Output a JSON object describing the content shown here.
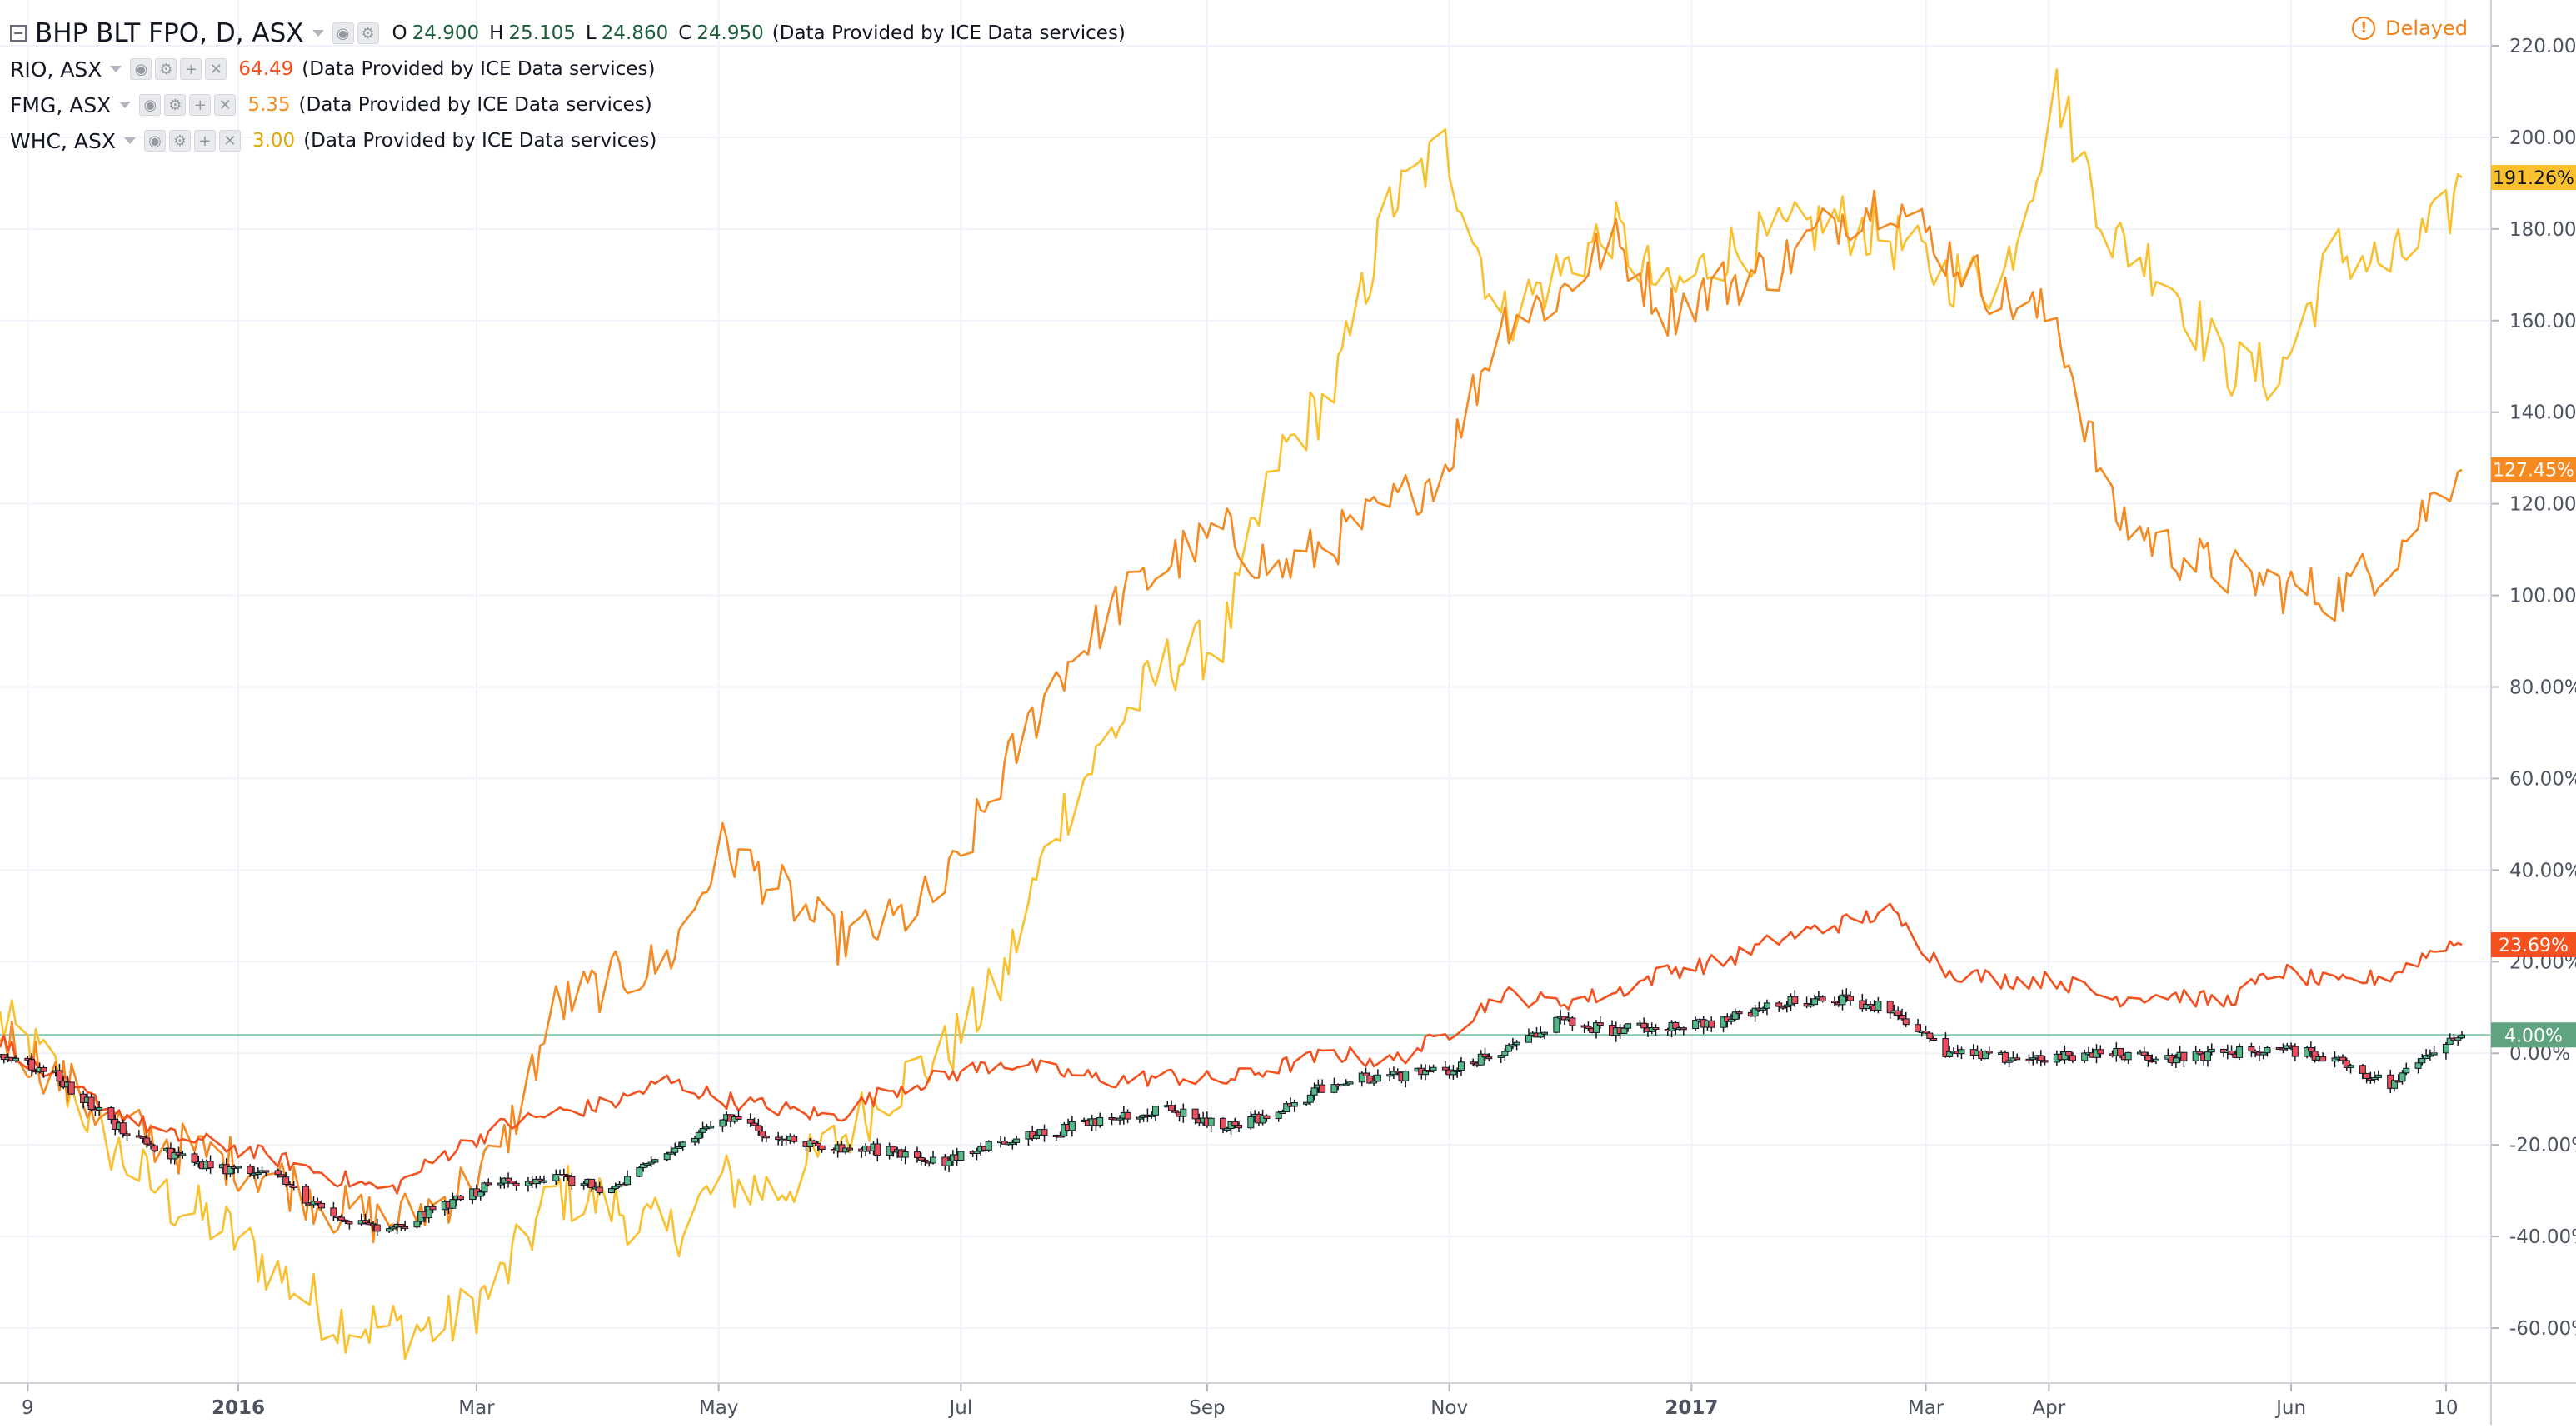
{
  "legend": {
    "main": {
      "symbol": "BHP BLT FPO, D, ASX",
      "o_label": "O",
      "o_value": "24.900",
      "h_label": "H",
      "h_value": "25.105",
      "l_label": "L",
      "l_value": "24.860",
      "c_label": "C",
      "c_value": "24.950",
      "note": "(Data Provided by ICE Data services)"
    },
    "compare": [
      {
        "symbol": "RIO, ASX",
        "value": "64.49",
        "note": "(Data Provided by ICE Data services)",
        "color": "#f4511e"
      },
      {
        "symbol": "FMG, ASX",
        "value": "5.35",
        "note": "(Data Provided by ICE Data services)",
        "color": "#f6891f"
      },
      {
        "symbol": "WHC, ASX",
        "value": "3.00",
        "note": "(Data Provided by ICE Data services)",
        "color": "#fbc02d"
      }
    ]
  },
  "status": {
    "delayed_label": "Delayed",
    "icon": "alert-circle-icon"
  },
  "colors": {
    "background": "#ffffff",
    "grid": "#f0f3fa",
    "axis_text": "#4c525e",
    "candle_up": "#53b987",
    "candle_down": "#eb4d5c",
    "candle_outline": "#131722",
    "rio": "#f4511e",
    "fmg": "#f6891f",
    "whc": "#fbc02d",
    "zero_line": "#7fc8a9",
    "bhp_badge": "#5fa47f"
  },
  "chart_data": {
    "type": "line",
    "subtype": "percent-comparison",
    "title": "",
    "xlabel": "",
    "ylabel": "",
    "x_range": [
      "2015-11-02",
      "2017-07-14"
    ],
    "ylim": [
      -72,
      230
    ],
    "y_ticks": [
      -60,
      -40,
      -20,
      0,
      20,
      40,
      60,
      80,
      100,
      120,
      140,
      160,
      180,
      200,
      220
    ],
    "y_tick_labels": [
      "-60.00%",
      "-40.00%",
      "-20.00%",
      "0.00%",
      "20.00%",
      "40.00%",
      "60.00%",
      "80.00%",
      "100.00%",
      "120.00%",
      "140.00%",
      "160.00%",
      "180.00%",
      "200.00%",
      "220.00%"
    ],
    "x_ticks": [
      {
        "date": "2015-11-09",
        "label": "9"
      },
      {
        "date": "2016-01-01",
        "label": "2016"
      },
      {
        "date": "2016-03-01",
        "label": "Mar"
      },
      {
        "date": "2016-05-01",
        "label": "May"
      },
      {
        "date": "2016-07-01",
        "label": "Jul"
      },
      {
        "date": "2016-09-01",
        "label": "Sep"
      },
      {
        "date": "2016-11-01",
        "label": "Nov"
      },
      {
        "date": "2017-01-01",
        "label": "2017"
      },
      {
        "date": "2017-03-01",
        "label": "Mar"
      },
      {
        "date": "2017-04-01",
        "label": "Apr"
      },
      {
        "date": "2017-06-01",
        "label": "Jun"
      },
      {
        "date": "2017-07-10",
        "label": "10"
      }
    ],
    "grid": true,
    "legend_position": "top-left",
    "series": [
      {
        "name": "BHP BLT FPO, D, ASX",
        "style": "candles",
        "color": "#53b987",
        "last_label": "4.00%",
        "points": [
          [
            "2015-11-02",
            0
          ],
          [
            "2015-11-16",
            -5
          ],
          [
            "2015-11-30",
            -15
          ],
          [
            "2015-12-14",
            -22
          ],
          [
            "2015-12-28",
            -25
          ],
          [
            "2016-01-11",
            -27
          ],
          [
            "2016-01-25",
            -36
          ],
          [
            "2016-02-08",
            -39
          ],
          [
            "2016-02-22",
            -33
          ],
          [
            "2016-03-07",
            -28
          ],
          [
            "2016-03-21",
            -27
          ],
          [
            "2016-04-04",
            -30
          ],
          [
            "2016-04-18",
            -22
          ],
          [
            "2016-05-02",
            -14
          ],
          [
            "2016-05-16",
            -18
          ],
          [
            "2016-05-30",
            -21
          ],
          [
            "2016-06-13",
            -21
          ],
          [
            "2016-06-27",
            -24
          ],
          [
            "2016-07-11",
            -19
          ],
          [
            "2016-07-25",
            -17
          ],
          [
            "2016-08-08",
            -14
          ],
          [
            "2016-08-22",
            -12
          ],
          [
            "2016-09-05",
            -16
          ],
          [
            "2016-09-19",
            -13
          ],
          [
            "2016-10-03",
            -6
          ],
          [
            "2016-10-17",
            -5
          ],
          [
            "2016-10-31",
            -4
          ],
          [
            "2016-11-14",
            0
          ],
          [
            "2016-11-28",
            7
          ],
          [
            "2016-12-12",
            5
          ],
          [
            "2016-12-26",
            6
          ],
          [
            "2017-01-09",
            7
          ],
          [
            "2017-01-23",
            11
          ],
          [
            "2017-02-06",
            12
          ],
          [
            "2017-02-20",
            10
          ],
          [
            "2017-03-06",
            0
          ],
          [
            "2017-03-20",
            -1
          ],
          [
            "2017-04-03",
            -1
          ],
          [
            "2017-04-17",
            0
          ],
          [
            "2017-05-01",
            -1
          ],
          [
            "2017-05-15",
            0
          ],
          [
            "2017-05-29",
            1
          ],
          [
            "2017-06-12",
            -1
          ],
          [
            "2017-06-26",
            -7
          ],
          [
            "2017-07-10",
            3
          ],
          [
            "2017-07-14",
            4
          ]
        ]
      },
      {
        "name": "RIO, ASX",
        "style": "line",
        "color": "#f4511e",
        "last_label": "23.69%",
        "points": [
          [
            "2015-11-02",
            3
          ],
          [
            "2015-11-16",
            -6
          ],
          [
            "2015-11-30",
            -12
          ],
          [
            "2015-12-14",
            -18
          ],
          [
            "2015-12-28",
            -20
          ],
          [
            "2016-01-11",
            -23
          ],
          [
            "2016-01-25",
            -27
          ],
          [
            "2016-02-08",
            -30
          ],
          [
            "2016-02-22",
            -22
          ],
          [
            "2016-03-07",
            -16
          ],
          [
            "2016-03-21",
            -13
          ],
          [
            "2016-04-04",
            -11
          ],
          [
            "2016-04-18",
            -6
          ],
          [
            "2016-05-02",
            -10
          ],
          [
            "2016-05-16",
            -12
          ],
          [
            "2016-05-30",
            -14
          ],
          [
            "2016-06-13",
            -8
          ],
          [
            "2016-06-27",
            -5
          ],
          [
            "2016-07-11",
            -2
          ],
          [
            "2016-07-25",
            -4
          ],
          [
            "2016-08-08",
            -6
          ],
          [
            "2016-08-22",
            -5
          ],
          [
            "2016-09-05",
            -6
          ],
          [
            "2016-09-19",
            -3
          ],
          [
            "2016-10-03",
            0
          ],
          [
            "2016-10-17",
            -2
          ],
          [
            "2016-10-31",
            4
          ],
          [
            "2016-11-14",
            13
          ],
          [
            "2016-11-28",
            11
          ],
          [
            "2016-12-12",
            13
          ],
          [
            "2016-12-26",
            18
          ],
          [
            "2017-01-09",
            20
          ],
          [
            "2017-01-23",
            25
          ],
          [
            "2017-02-06",
            28
          ],
          [
            "2017-02-20",
            31
          ],
          [
            "2017-03-06",
            18
          ],
          [
            "2017-03-20",
            16
          ],
          [
            "2017-04-03",
            16
          ],
          [
            "2017-04-17",
            12
          ],
          [
            "2017-05-01",
            13
          ],
          [
            "2017-05-15",
            11
          ],
          [
            "2017-05-29",
            18
          ],
          [
            "2017-06-12",
            15
          ],
          [
            "2017-06-26",
            17
          ],
          [
            "2017-07-10",
            24
          ],
          [
            "2017-07-14",
            23.69
          ]
        ]
      },
      {
        "name": "FMG, ASX",
        "style": "line",
        "color": "#f6891f",
        "last_label": "127.45%",
        "points": [
          [
            "2015-11-02",
            5
          ],
          [
            "2015-11-16",
            -5
          ],
          [
            "2015-11-30",
            -15
          ],
          [
            "2015-12-14",
            -20
          ],
          [
            "2015-12-28",
            -23
          ],
          [
            "2016-01-11",
            -27
          ],
          [
            "2016-01-25",
            -34
          ],
          [
            "2016-02-08",
            -37
          ],
          [
            "2016-02-22",
            -32
          ],
          [
            "2016-03-07",
            -22
          ],
          [
            "2016-03-21",
            10
          ],
          [
            "2016-04-04",
            16
          ],
          [
            "2016-04-18",
            20
          ],
          [
            "2016-05-02",
            45
          ],
          [
            "2016-05-16",
            36
          ],
          [
            "2016-05-30",
            25
          ],
          [
            "2016-06-13",
            28
          ],
          [
            "2016-06-27",
            36
          ],
          [
            "2016-07-11",
            60
          ],
          [
            "2016-07-25",
            82
          ],
          [
            "2016-08-08",
            97
          ],
          [
            "2016-08-22",
            107
          ],
          [
            "2016-09-05",
            114
          ],
          [
            "2016-09-19",
            105
          ],
          [
            "2016-10-03",
            112
          ],
          [
            "2016-10-17",
            119
          ],
          [
            "2016-10-31",
            128
          ],
          [
            "2016-11-14",
            160
          ],
          [
            "2016-11-28",
            165
          ],
          [
            "2016-12-12",
            178
          ],
          [
            "2016-12-26",
            162
          ],
          [
            "2017-01-09",
            168
          ],
          [
            "2017-01-23",
            172
          ],
          [
            "2017-02-06",
            182
          ],
          [
            "2017-02-20",
            187
          ],
          [
            "2017-03-06",
            175
          ],
          [
            "2017-03-20",
            165
          ],
          [
            "2017-04-03",
            160
          ],
          [
            "2017-04-17",
            118
          ],
          [
            "2017-05-01",
            110
          ],
          [
            "2017-05-15",
            105
          ],
          [
            "2017-05-29",
            102
          ],
          [
            "2017-06-12",
            100
          ],
          [
            "2017-06-26",
            108
          ],
          [
            "2017-07-10",
            125
          ],
          [
            "2017-07-14",
            127.45
          ]
        ]
      },
      {
        "name": "WHC, ASX",
        "style": "line",
        "color": "#fbc02d",
        "last_label": "191.26%",
        "points": [
          [
            "2015-11-02",
            7
          ],
          [
            "2015-11-16",
            -4
          ],
          [
            "2015-11-30",
            -20
          ],
          [
            "2015-12-14",
            -32
          ],
          [
            "2015-12-28",
            -38
          ],
          [
            "2016-01-11",
            -48
          ],
          [
            "2016-01-25",
            -58
          ],
          [
            "2016-02-08",
            -60
          ],
          [
            "2016-02-22",
            -60
          ],
          [
            "2016-03-07",
            -50
          ],
          [
            "2016-03-21",
            -30
          ],
          [
            "2016-04-04",
            -33
          ],
          [
            "2016-04-18",
            -40
          ],
          [
            "2016-05-02",
            -28
          ],
          [
            "2016-05-16",
            -30
          ],
          [
            "2016-05-30",
            -20
          ],
          [
            "2016-06-13",
            -8
          ],
          [
            "2016-06-27",
            0
          ],
          [
            "2016-07-11",
            15
          ],
          [
            "2016-07-25",
            50
          ],
          [
            "2016-08-08",
            70
          ],
          [
            "2016-08-22",
            85
          ],
          [
            "2016-09-05",
            90
          ],
          [
            "2016-09-19",
            130
          ],
          [
            "2016-10-03",
            145
          ],
          [
            "2016-10-17",
            185
          ],
          [
            "2016-10-31",
            198
          ],
          [
            "2016-11-14",
            160
          ],
          [
            "2016-11-28",
            170
          ],
          [
            "2016-12-12",
            180
          ],
          [
            "2016-12-26",
            165
          ],
          [
            "2017-01-09",
            175
          ],
          [
            "2017-01-23",
            178
          ],
          [
            "2017-02-06",
            182
          ],
          [
            "2017-02-20",
            178
          ],
          [
            "2017-03-06",
            170
          ],
          [
            "2017-03-20",
            168
          ],
          [
            "2017-04-03",
            210
          ],
          [
            "2017-04-17",
            178
          ],
          [
            "2017-05-01",
            170
          ],
          [
            "2017-05-15",
            150
          ],
          [
            "2017-05-29",
            148
          ],
          [
            "2017-06-12",
            175
          ],
          [
            "2017-06-26",
            172
          ],
          [
            "2017-07-10",
            182
          ],
          [
            "2017-07-14",
            191.26
          ]
        ]
      }
    ]
  }
}
